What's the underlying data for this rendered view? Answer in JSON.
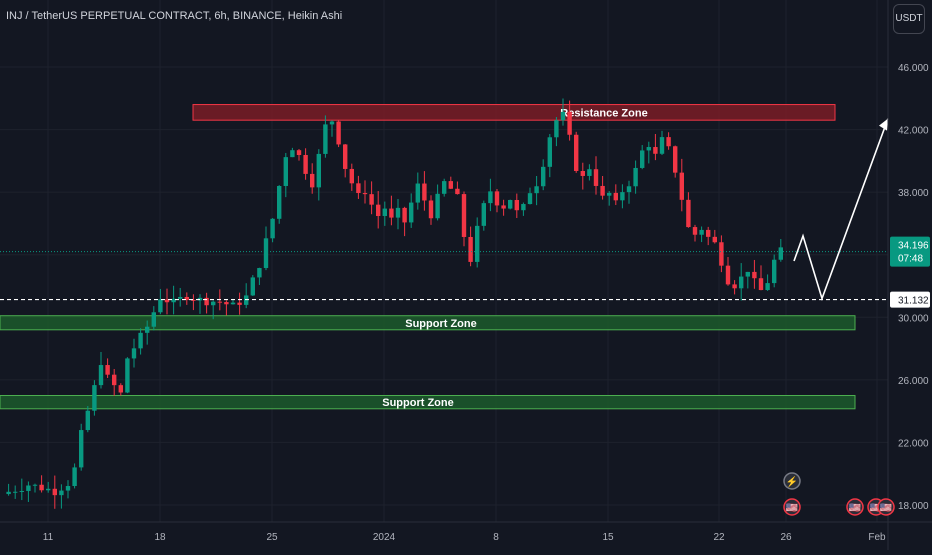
{
  "header": {
    "title": "INJ / TetherUS PERPETUAL CONTRACT, 6h, BINANCE, Heikin Ashi",
    "currency": "USDT"
  },
  "colors": {
    "background": "#131722",
    "up": "#089981",
    "down": "#f23645",
    "resistance_fill": "#7a1c26",
    "resistance_border": "#f23645",
    "support_fill": "#1c5a2c",
    "support_border": "#4caf50",
    "price_label": "#089981",
    "projection": "#ffffff"
  },
  "chart_data": {
    "type": "candlestick",
    "title": "INJ / TetherUS PERPETUAL CONTRACT, 6h, BINANCE, Heikin Ashi",
    "y_ticks": [
      "46.000",
      "42.000",
      "38.000",
      "34.000",
      "30.000",
      "26.000",
      "22.000",
      "18.000"
    ],
    "x_ticks": [
      "11",
      "18",
      "25",
      "2024",
      "8",
      "15",
      "22",
      "26",
      "Feb"
    ],
    "ylim": [
      17,
      49
    ],
    "current_price": "34.196",
    "countdown": "07:48",
    "level_line": "31.132",
    "zones": [
      {
        "label": "Resistance Zone",
        "low": 42.6,
        "high": 43.6,
        "kind": "resistance"
      },
      {
        "label": "Support Zone",
        "low": 29.2,
        "high": 30.1,
        "kind": "support"
      },
      {
        "label": "Support Zone",
        "low": 24.15,
        "high": 25.0,
        "kind": "support"
      }
    ],
    "projection_path": [
      {
        "x": "26",
        "y": 33.6
      },
      {
        "x": "26",
        "y": 35.2
      },
      {
        "x": "28",
        "y": 31.2
      },
      {
        "x": "31",
        "y": 42.7
      }
    ],
    "close_path": [
      [
        0,
        18.7
      ],
      [
        4,
        19.3
      ],
      [
        8,
        18.9
      ],
      [
        10,
        19.4
      ],
      [
        11,
        20.3
      ],
      [
        12,
        22.5
      ],
      [
        14,
        25.5
      ],
      [
        15,
        27.2
      ],
      [
        16,
        26.1
      ],
      [
        18,
        25.1
      ],
      [
        19,
        27.4
      ],
      [
        22,
        29.4
      ],
      [
        24,
        31.3
      ],
      [
        26,
        30.9
      ],
      [
        28,
        31.4
      ],
      [
        30,
        31.1
      ],
      [
        33,
        31.0
      ],
      [
        35,
        30.7
      ],
      [
        37,
        31.3
      ],
      [
        39,
        33.4
      ],
      [
        41,
        36.3
      ],
      [
        42,
        38.4
      ],
      [
        43,
        40.4
      ],
      [
        44,
        40.9
      ],
      [
        45,
        40.3
      ],
      [
        46,
        39.4
      ],
      [
        47,
        38.6
      ],
      [
        48,
        40.3
      ],
      [
        49,
        42.2
      ],
      [
        50,
        42.6
      ],
      [
        51,
        41.3
      ],
      [
        52,
        39.6
      ],
      [
        53,
        38.6
      ],
      [
        54,
        37.7
      ],
      [
        55,
        38.1
      ],
      [
        56,
        37.2
      ],
      [
        57,
        36.5
      ],
      [
        58,
        37.0
      ],
      [
        59,
        36.2
      ],
      [
        60,
        36.7
      ],
      [
        61,
        36.1
      ],
      [
        62,
        37.3
      ],
      [
        63,
        38.4
      ],
      [
        64,
        37.5
      ],
      [
        65,
        36.6
      ],
      [
        66,
        37.6
      ],
      [
        67,
        38.6
      ],
      [
        68,
        38.2
      ],
      [
        69,
        37.6
      ],
      [
        70,
        35.2
      ],
      [
        71,
        33.7
      ],
      [
        72,
        35.6
      ],
      [
        73,
        37.1
      ],
      [
        74,
        38.1
      ],
      [
        75,
        37.4
      ],
      [
        76,
        37.1
      ],
      [
        77,
        37.6
      ],
      [
        78,
        36.7
      ],
      [
        79,
        37.0
      ],
      [
        80,
        38.1
      ],
      [
        81,
        38.6
      ],
      [
        82,
        39.9
      ],
      [
        83,
        41.6
      ],
      [
        84,
        42.6
      ],
      [
        85,
        42.9
      ],
      [
        86,
        41.4
      ],
      [
        87,
        39.6
      ],
      [
        88,
        38.9
      ],
      [
        89,
        39.6
      ],
      [
        90,
        38.6
      ],
      [
        91,
        37.6
      ],
      [
        92,
        37.9
      ],
      [
        93,
        37.2
      ],
      [
        94,
        38.1
      ],
      [
        95,
        38.6
      ],
      [
        96,
        39.4
      ],
      [
        97,
        40.6
      ],
      [
        98,
        41.1
      ],
      [
        99,
        40.3
      ],
      [
        100,
        41.3
      ],
      [
        101,
        40.7
      ],
      [
        102,
        39.4
      ],
      [
        103,
        37.6
      ],
      [
        104,
        35.7
      ],
      [
        105,
        35.3
      ],
      [
        106,
        35.7
      ],
      [
        107,
        35.1
      ],
      [
        108,
        34.7
      ],
      [
        109,
        33.6
      ],
      [
        110,
        32.4
      ],
      [
        111,
        32.1
      ],
      [
        112,
        32.5
      ],
      [
        113,
        33.1
      ],
      [
        114,
        32.2
      ],
      [
        115,
        31.7
      ],
      [
        116,
        32.3
      ],
      [
        117,
        33.6
      ],
      [
        118,
        34.2
      ]
    ]
  },
  "badges": {
    "lightning_label": "⚡",
    "flag_label": "🇺🇸"
  }
}
